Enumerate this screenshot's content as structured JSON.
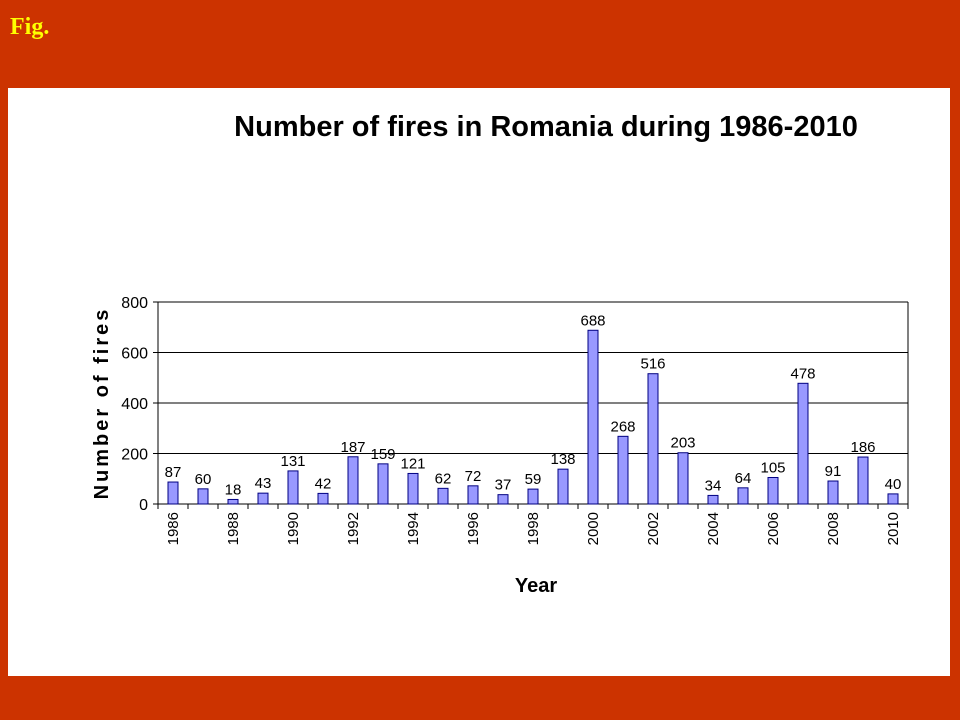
{
  "fig_label": "Fig.",
  "chart_data": {
    "type": "bar",
    "title": "Number of fires in Romania during 1986-2010",
    "xlabel": "Year",
    "ylabel": "Number of fires",
    "ylim": [
      0,
      800
    ],
    "yticks": [
      0,
      200,
      400,
      600,
      800
    ],
    "grid": true,
    "categories": [
      "1986",
      "1987",
      "1988",
      "1989",
      "1990",
      "1991",
      "1992",
      "1993",
      "1994",
      "1995",
      "1996",
      "1997",
      "1998",
      "1999",
      "2000",
      "2001",
      "2002",
      "2003",
      "2004",
      "2005",
      "2006",
      "2007",
      "2008",
      "2009",
      "2010"
    ],
    "x_tick_labels": [
      "1986",
      "",
      "1988",
      "",
      "1990",
      "",
      "1992",
      "",
      "1994",
      "",
      "1996",
      "",
      "1998",
      "",
      "2000",
      "",
      "2002",
      "",
      "2004",
      "",
      "2006",
      "",
      "2008",
      "",
      "2010"
    ],
    "values": [
      87,
      60,
      18,
      43,
      131,
      42,
      187,
      159,
      121,
      62,
      72,
      37,
      59,
      138,
      688,
      268,
      516,
      203,
      34,
      64,
      105,
      478,
      91,
      186,
      40
    ],
    "colors": {
      "bar_fill": "#9999ff",
      "bar_stroke": "#000080"
    }
  }
}
